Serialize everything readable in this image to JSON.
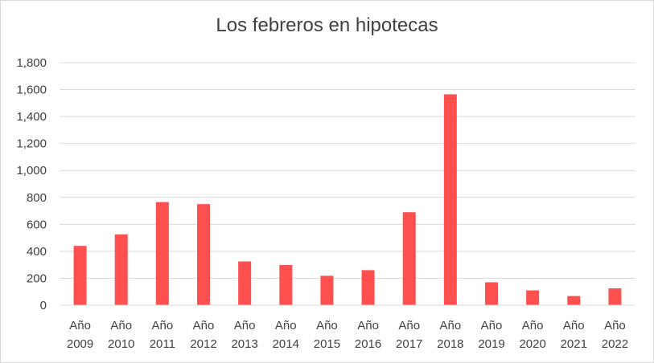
{
  "chart_data": {
    "type": "bar",
    "title": "Los febreros en hipotecas",
    "xlabel": "",
    "ylabel": "",
    "categories": [
      [
        "Año",
        "2009"
      ],
      [
        "Año",
        "2010"
      ],
      [
        "Año",
        "2011"
      ],
      [
        "Año",
        "2012"
      ],
      [
        "Año",
        "2013"
      ],
      [
        "Año",
        "2014"
      ],
      [
        "Año",
        "2015"
      ],
      [
        "Año",
        "2016"
      ],
      [
        "Año",
        "2017"
      ],
      [
        "Año",
        "2018"
      ],
      [
        "Año",
        "2019"
      ],
      [
        "Año",
        "2020"
      ],
      [
        "Año",
        "2021"
      ],
      [
        "Año",
        "2022"
      ]
    ],
    "values": [
      440,
      525,
      765,
      750,
      325,
      298,
      218,
      260,
      690,
      1565,
      170,
      110,
      68,
      125
    ],
    "ylim": [
      0,
      1800
    ],
    "yticks": [
      0,
      200,
      400,
      600,
      800,
      1000,
      1200,
      1400,
      1600,
      1800
    ],
    "ytick_labels": [
      "0",
      "200",
      "400",
      "600",
      "800",
      "1,000",
      "1,200",
      "1,400",
      "1,600",
      "1,800"
    ],
    "grid": true,
    "legend": "none",
    "bar_color": "#ff5050",
    "gridline_color": "#d9d9d9"
  }
}
